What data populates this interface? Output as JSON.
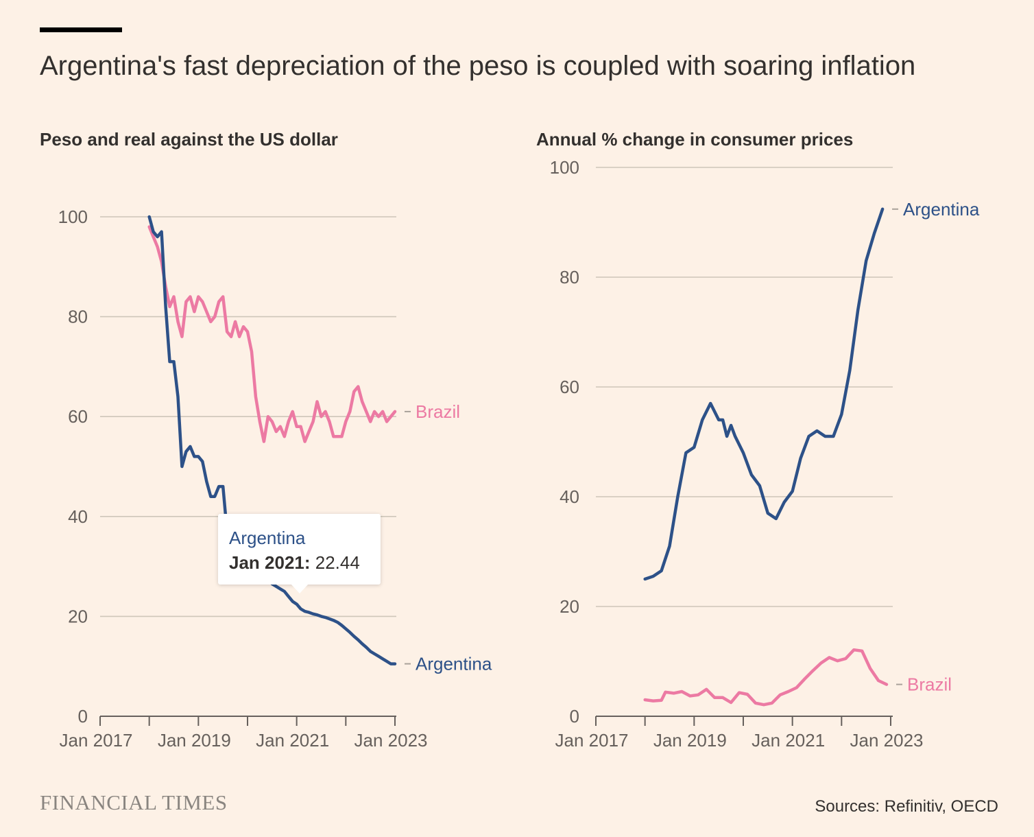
{
  "title": "Argentina's fast depreciation of the peso is coupled with soaring inflation",
  "colors": {
    "argentina": "#2d5188",
    "brazil": "#ec7aa3",
    "background": "#fdf1e6"
  },
  "tooltip": {
    "series": "Argentina",
    "date": "Jan 2021:",
    "value": "22.44"
  },
  "footer": {
    "brand": "FINANCIAL TIMES",
    "source": "Sources: Refinitiv, OECD"
  },
  "chart_data": [
    {
      "type": "line",
      "title": "Peso and real against the US dollar",
      "xlabel": "",
      "ylabel": "",
      "ylim": [
        0,
        100
      ],
      "y_ticks": [
        0,
        20,
        40,
        60,
        80,
        100
      ],
      "x_ticks": [
        "Jan 2017",
        "Jan 2019",
        "Jan 2021",
        "Jan 2023"
      ],
      "xlim": [
        "2017-01",
        "2023-01"
      ],
      "grid": true,
      "legend": "direct labels at line ends",
      "series": [
        {
          "name": "Brazil",
          "color": "#ec7aa3",
          "points": [
            [
              "2018-01",
              98
            ],
            [
              "2018-02",
              96
            ],
            [
              "2018-03",
              94
            ],
            [
              "2018-04",
              91
            ],
            [
              "2018-05",
              86
            ],
            [
              "2018-06",
              82
            ],
            [
              "2018-07",
              84
            ],
            [
              "2018-08",
              79
            ],
            [
              "2018-09",
              76
            ],
            [
              "2018-10",
              83
            ],
            [
              "2018-11",
              84
            ],
            [
              "2018-12",
              81
            ],
            [
              "2019-01",
              84
            ],
            [
              "2019-02",
              83
            ],
            [
              "2019-03",
              81
            ],
            [
              "2019-04",
              79
            ],
            [
              "2019-05",
              80
            ],
            [
              "2019-06",
              83
            ],
            [
              "2019-07",
              84
            ],
            [
              "2019-08",
              77
            ],
            [
              "2019-09",
              76
            ],
            [
              "2019-10",
              79
            ],
            [
              "2019-11",
              76
            ],
            [
              "2019-12",
              78
            ],
            [
              "2020-01",
              77
            ],
            [
              "2020-02",
              73
            ],
            [
              "2020-03",
              64
            ],
            [
              "2020-04",
              59
            ],
            [
              "2020-05",
              55
            ],
            [
              "2020-06",
              60
            ],
            [
              "2020-07",
              59
            ],
            [
              "2020-08",
              57
            ],
            [
              "2020-09",
              58
            ],
            [
              "2020-10",
              56
            ],
            [
              "2020-11",
              59
            ],
            [
              "2020-12",
              61
            ],
            [
              "2021-01",
              58
            ],
            [
              "2021-02",
              58
            ],
            [
              "2021-03",
              55
            ],
            [
              "2021-04",
              57
            ],
            [
              "2021-05",
              59
            ],
            [
              "2021-06",
              63
            ],
            [
              "2021-07",
              60
            ],
            [
              "2021-08",
              61
            ],
            [
              "2021-09",
              59
            ],
            [
              "2021-10",
              56
            ],
            [
              "2021-11",
              56
            ],
            [
              "2021-12",
              56
            ],
            [
              "2022-01",
              59
            ],
            [
              "2022-02",
              61
            ],
            [
              "2022-03",
              65
            ],
            [
              "2022-04",
              66
            ],
            [
              "2022-05",
              63
            ],
            [
              "2022-06",
              61
            ],
            [
              "2022-07",
              59
            ],
            [
              "2022-08",
              61
            ],
            [
              "2022-09",
              60
            ],
            [
              "2022-10",
              61
            ],
            [
              "2022-11",
              59
            ],
            [
              "2022-12",
              60
            ],
            [
              "2023-01",
              61
            ]
          ]
        },
        {
          "name": "Argentina",
          "color": "#2d5188",
          "points": [
            [
              "2018-01",
              100
            ],
            [
              "2018-02",
              97
            ],
            [
              "2018-03",
              96
            ],
            [
              "2018-04",
              97
            ],
            [
              "2018-05",
              82
            ],
            [
              "2018-06",
              71
            ],
            [
              "2018-07",
              71
            ],
            [
              "2018-08",
              64
            ],
            [
              "2018-09",
              50
            ],
            [
              "2018-10",
              53
            ],
            [
              "2018-11",
              54
            ],
            [
              "2018-12",
              52
            ],
            [
              "2019-01",
              52
            ],
            [
              "2019-02",
              51
            ],
            [
              "2019-03",
              47
            ],
            [
              "2019-04",
              44
            ],
            [
              "2019-05",
              44
            ],
            [
              "2019-06",
              46
            ],
            [
              "2019-07",
              46
            ],
            [
              "2019-08",
              37
            ],
            [
              "2019-09",
              35
            ],
            [
              "2019-10",
              34
            ],
            [
              "2019-11",
              33
            ],
            [
              "2019-12",
              33
            ],
            [
              "2020-01",
              32
            ],
            [
              "2020-02",
              31.5
            ],
            [
              "2020-03",
              30.5
            ],
            [
              "2020-04",
              29.5
            ],
            [
              "2020-05",
              28.5
            ],
            [
              "2020-06",
              27.5
            ],
            [
              "2020-07",
              26.5
            ],
            [
              "2020-08",
              26
            ],
            [
              "2020-09",
              25.5
            ],
            [
              "2020-10",
              25
            ],
            [
              "2020-11",
              24
            ],
            [
              "2020-12",
              23
            ],
            [
              "2021-01",
              22.44
            ],
            [
              "2021-02",
              21.5
            ],
            [
              "2021-03",
              21
            ],
            [
              "2021-04",
              20.8
            ],
            [
              "2021-05",
              20.5
            ],
            [
              "2021-06",
              20.3
            ],
            [
              "2021-07",
              20
            ],
            [
              "2021-08",
              19.8
            ],
            [
              "2021-09",
              19.5
            ],
            [
              "2021-10",
              19.2
            ],
            [
              "2021-11",
              18.8
            ],
            [
              "2021-12",
              18.2
            ],
            [
              "2022-01",
              17.5
            ],
            [
              "2022-02",
              16.8
            ],
            [
              "2022-03",
              16
            ],
            [
              "2022-04",
              15.3
            ],
            [
              "2022-05",
              14.5
            ],
            [
              "2022-06",
              13.8
            ],
            [
              "2022-07",
              13
            ],
            [
              "2022-08",
              12.5
            ],
            [
              "2022-09",
              12
            ],
            [
              "2022-10",
              11.5
            ],
            [
              "2022-11",
              11
            ],
            [
              "2022-12",
              10.5
            ],
            [
              "2023-01",
              10.5
            ]
          ]
        }
      ]
    },
    {
      "type": "line",
      "title": "Annual % change in consumer prices",
      "xlabel": "",
      "ylabel": "",
      "ylim": [
        0,
        100
      ],
      "y_ticks": [
        0,
        20,
        40,
        60,
        80,
        100
      ],
      "x_ticks": [
        "Jan 2017",
        "Jan 2019",
        "Jan 2021",
        "Jan 2023"
      ],
      "xlim": [
        "2017-01",
        "2023-01"
      ],
      "grid": true,
      "legend": "direct labels at line ends",
      "series": [
        {
          "name": "Argentina",
          "color": "#2d5188",
          "points": [
            [
              "2018-01",
              25
            ],
            [
              "2018-03",
              25.5
            ],
            [
              "2018-05",
              26.5
            ],
            [
              "2018-07",
              31
            ],
            [
              "2018-09",
              40
            ],
            [
              "2018-11",
              48
            ],
            [
              "2019-01",
              49
            ],
            [
              "2019-03",
              54
            ],
            [
              "2019-05",
              57
            ],
            [
              "2019-07",
              54
            ],
            [
              "2019-08",
              54
            ],
            [
              "2019-09",
              51
            ],
            [
              "2019-10",
              53
            ],
            [
              "2019-11",
              51
            ],
            [
              "2020-01",
              48
            ],
            [
              "2020-03",
              44
            ],
            [
              "2020-05",
              42
            ],
            [
              "2020-07",
              37
            ],
            [
              "2020-09",
              36
            ],
            [
              "2020-11",
              39
            ],
            [
              "2021-01",
              41
            ],
            [
              "2021-03",
              47
            ],
            [
              "2021-05",
              51
            ],
            [
              "2021-07",
              52
            ],
            [
              "2021-09",
              51
            ],
            [
              "2021-11",
              51
            ],
            [
              "2022-01",
              55
            ],
            [
              "2022-03",
              63
            ],
            [
              "2022-05",
              74
            ],
            [
              "2022-07",
              83
            ],
            [
              "2022-09",
              88
            ],
            [
              "2022-11",
              92.4
            ]
          ]
        },
        {
          "name": "Brazil",
          "color": "#ec7aa3",
          "points": [
            [
              "2018-01",
              3
            ],
            [
              "2018-03",
              2.8
            ],
            [
              "2018-05",
              2.9
            ],
            [
              "2018-06",
              4.4
            ],
            [
              "2018-08",
              4.2
            ],
            [
              "2018-10",
              4.5
            ],
            [
              "2018-12",
              3.7
            ],
            [
              "2019-02",
              3.9
            ],
            [
              "2019-04",
              4.9
            ],
            [
              "2019-06",
              3.4
            ],
            [
              "2019-08",
              3.4
            ],
            [
              "2019-10",
              2.5
            ],
            [
              "2019-12",
              4.3
            ],
            [
              "2020-02",
              4
            ],
            [
              "2020-04",
              2.4
            ],
            [
              "2020-06",
              2.1
            ],
            [
              "2020-08",
              2.4
            ],
            [
              "2020-10",
              3.9
            ],
            [
              "2020-12",
              4.5
            ],
            [
              "2021-02",
              5.2
            ],
            [
              "2021-04",
              6.8
            ],
            [
              "2021-06",
              8.3
            ],
            [
              "2021-08",
              9.7
            ],
            [
              "2021-10",
              10.7
            ],
            [
              "2021-12",
              10.1
            ],
            [
              "2022-02",
              10.5
            ],
            [
              "2022-04",
              12.1
            ],
            [
              "2022-06",
              11.9
            ],
            [
              "2022-08",
              8.7
            ],
            [
              "2022-10",
              6.5
            ],
            [
              "2022-12",
              5.8
            ]
          ]
        }
      ]
    }
  ]
}
